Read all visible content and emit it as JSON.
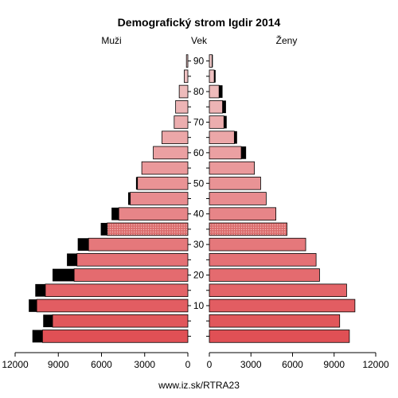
{
  "chart_data": {
    "type": "bar",
    "subtype": "population-pyramid",
    "title": "Demografický strom Igdir 2014",
    "left_label": "Muži",
    "center_label": "Vek",
    "right_label": "Ženy",
    "footer": "www.iz.sk/RTRA23",
    "age_groups": [
      "0-4",
      "5-9",
      "10-14",
      "15-19",
      "20-24",
      "25-29",
      "30-34",
      "35-39",
      "40-44",
      "45-49",
      "50-54",
      "55-59",
      "60-64",
      "65-69",
      "70-74",
      "75-79",
      "80-84",
      "85-89",
      "90+"
    ],
    "age_tick_labels": [
      "10",
      "20",
      "30",
      "40",
      "50",
      "60",
      "70",
      "80",
      "90"
    ],
    "x_tick_labels": [
      "12000",
      "9000",
      "6000",
      "3000",
      "0",
      "0",
      "3000",
      "6000",
      "9000",
      "12000"
    ],
    "xlim": [
      0,
      12000
    ],
    "colors": {
      "surplus": "#000000",
      "outline": "#000000",
      "bar_young": "#e05055",
      "bar_old": "#f0c8c8"
    },
    "series": [
      {
        "name": "Muži",
        "values": [
          10100,
          9400,
          10500,
          9900,
          7900,
          7700,
          6900,
          5600,
          4800,
          4000,
          3500,
          3200,
          2400,
          1800,
          950,
          850,
          600,
          250,
          100
        ],
        "surplus": [
          700,
          650,
          550,
          700,
          1500,
          700,
          750,
          450,
          500,
          150,
          100,
          0,
          0,
          0,
          0,
          0,
          0,
          0,
          0
        ]
      },
      {
        "name": "Ženy",
        "values": [
          10100,
          9400,
          10500,
          9900,
          7950,
          7700,
          6950,
          5600,
          4800,
          4100,
          3700,
          3250,
          2300,
          1800,
          1050,
          950,
          700,
          350,
          200
        ],
        "surplus": [
          0,
          0,
          0,
          0,
          0,
          0,
          0,
          0,
          0,
          0,
          0,
          0,
          350,
          200,
          200,
          250,
          250,
          100,
          50
        ]
      }
    ],
    "highlighted_age_group": "35-39"
  }
}
